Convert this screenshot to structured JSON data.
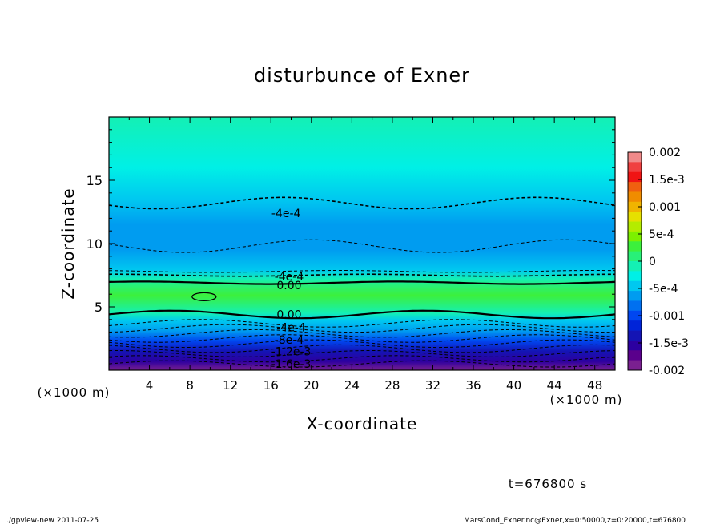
{
  "chart_data": {
    "type": "heatmap",
    "title": "disturbunce of Exner",
    "xlabel": "X-coordinate",
    "ylabel": "Z-coordinate",
    "x_unit_left": "(×1000 m)",
    "x_unit_right": "(×1000 m)",
    "xlim": [
      0,
      50
    ],
    "ylim": [
      0,
      20
    ],
    "x_ticks": [
      {
        "v": 4,
        "label": "4"
      },
      {
        "v": 8,
        "label": "8"
      },
      {
        "v": 12,
        "label": "12"
      },
      {
        "v": 16,
        "label": "16"
      },
      {
        "v": 20,
        "label": "20"
      },
      {
        "v": 24,
        "label": "24"
      },
      {
        "v": 28,
        "label": "28"
      },
      {
        "v": 32,
        "label": "32"
      },
      {
        "v": 36,
        "label": "36"
      },
      {
        "v": 40,
        "label": "40"
      },
      {
        "v": 44,
        "label": "44"
      },
      {
        "v": 48,
        "label": "48"
      }
    ],
    "y_ticks": [
      {
        "v": 5,
        "label": "5"
      },
      {
        "v": 10,
        "label": "10"
      },
      {
        "v": 15,
        "label": "15"
      }
    ],
    "z_profile": [
      {
        "z": 0.0,
        "value": -0.0019
      },
      {
        "z": 0.7,
        "value": -0.0016
      },
      {
        "z": 1.5,
        "value": -0.0013
      },
      {
        "z": 2.3,
        "value": -0.001
      },
      {
        "z": 3.1,
        "value": -0.0007
      },
      {
        "z": 3.9,
        "value": -0.0004
      },
      {
        "z": 4.5,
        "value": -0.0001
      },
      {
        "z": 5.2,
        "value": 0.0001
      },
      {
        "z": 5.9,
        "value": 0.0002
      },
      {
        "z": 6.7,
        "value": 0.0001
      },
      {
        "z": 7.2,
        "value": -0.0001
      },
      {
        "z": 7.9,
        "value": -0.0004
      },
      {
        "z": 9.5,
        "value": -0.0006
      },
      {
        "z": 11.5,
        "value": -0.0006
      },
      {
        "z": 13.5,
        "value": -0.0004
      },
      {
        "z": 16.0,
        "value": -0.0002
      },
      {
        "z": 20.0,
        "value": -0.0001
      }
    ],
    "contour_labels": [
      {
        "x": 17.5,
        "z": 12.4,
        "text": "-4e-4"
      },
      {
        "x": 17.8,
        "z": 7.4,
        "text": "-4e-4"
      },
      {
        "x": 17.8,
        "z": 6.7,
        "text": "0.00"
      },
      {
        "x": 17.8,
        "z": 4.4,
        "text": "0.00"
      },
      {
        "x": 18.0,
        "z": 3.4,
        "text": "-4e-4"
      },
      {
        "x": 17.8,
        "z": 2.4,
        "text": "-8e-4"
      },
      {
        "x": 18.0,
        "z": 1.5,
        "text": "-1.2e-3"
      },
      {
        "x": 18.0,
        "z": 0.5,
        "text": "-1.6e-3"
      }
    ],
    "colorbar": {
      "levels": [
        {
          "value": 0.002,
          "label": "0.002"
        },
        {
          "value": 0.0015,
          "label": "1.5e-3"
        },
        {
          "value": 0.001,
          "label": "0.001"
        },
        {
          "value": 0.0005,
          "label": "5e-4"
        },
        {
          "value": 0,
          "label": "0"
        },
        {
          "value": -0.0005,
          "label": "-5e-4"
        },
        {
          "value": -0.001,
          "label": "-0.001"
        },
        {
          "value": -0.0015,
          "label": "-1.5e-3"
        },
        {
          "value": -0.002,
          "label": "-0.002"
        }
      ],
      "colors": [
        "#f08a8a",
        "#f04040",
        "#f01414",
        "#f06010",
        "#f08c00",
        "#f0b400",
        "#e6e000",
        "#b4ec00",
        "#7cf000",
        "#3cf03c",
        "#28f078",
        "#14f0b4",
        "#00f0e6",
        "#00c8f0",
        "#009cf0",
        "#0070f0",
        "#0046f0",
        "#0024d8",
        "#1414b4",
        "#2c00a0",
        "#5a008c",
        "#7a2090"
      ]
    },
    "time_label": "t=676800 s",
    "footer_left": "./gpview-new   2011-07-25",
    "footer_right": "MarsCond_Exner.nc@Exner,x=0:50000,z=0:20000,t=676800"
  }
}
